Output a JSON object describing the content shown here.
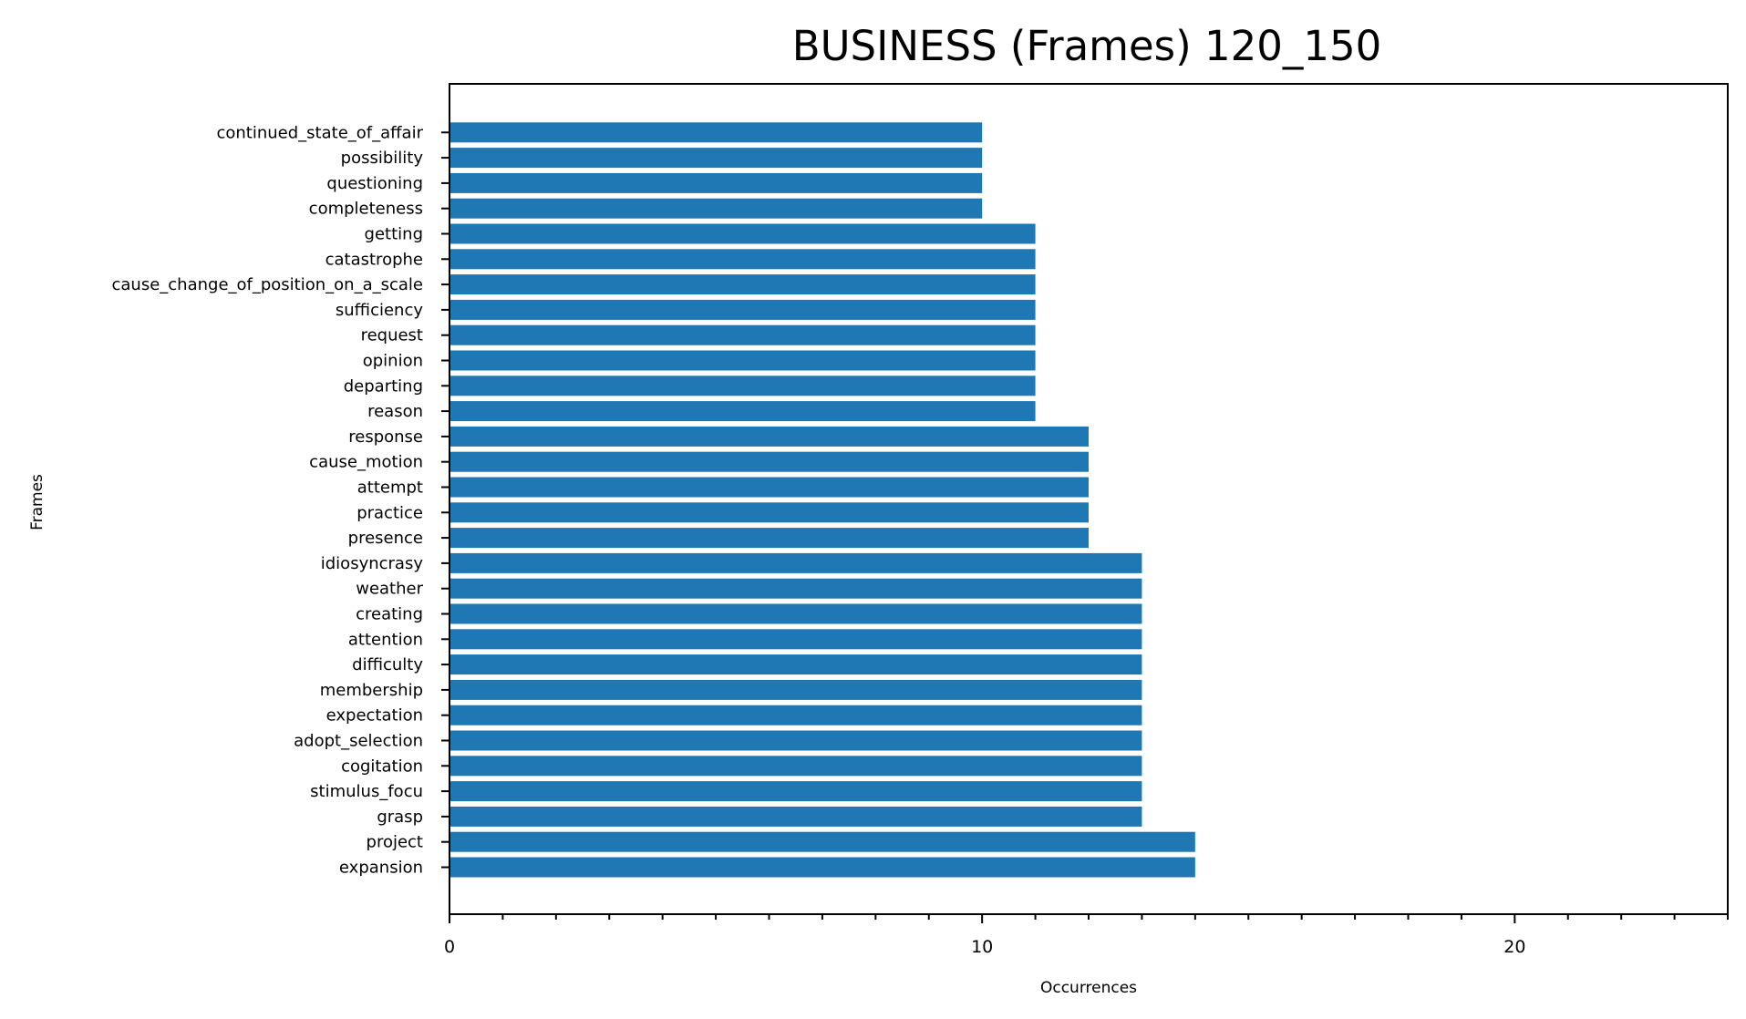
{
  "chart_data": {
    "type": "bar",
    "orientation": "horizontal",
    "title": "BUSINESS (Frames) 120_150",
    "xlabel": "Occurrences",
    "ylabel": "Frames",
    "xlim": [
      0,
      24
    ],
    "x_major_ticks": [
      0,
      10,
      20
    ],
    "x_minor_tick_step": 1,
    "grid": false,
    "bar_color": "#1f77b4",
    "categories": [
      "expansion",
      "project",
      "grasp",
      "stimulus_focu",
      "cogitation",
      "adopt_selection",
      "expectation",
      "membership",
      "difficulty",
      "attention",
      "creating",
      "weather",
      "idiosyncrasy",
      "presence",
      "practice",
      "attempt",
      "cause_motion",
      "response",
      "reason",
      "departing",
      "opinion",
      "request",
      "sufficiency",
      "cause_change_of_position_on_a_scale",
      "catastrophe",
      "getting",
      "completeness",
      "questioning",
      "possibility",
      "continued_state_of_affair"
    ],
    "values": [
      14,
      14,
      13,
      13,
      13,
      13,
      13,
      13,
      13,
      13,
      13,
      13,
      13,
      12,
      12,
      12,
      12,
      12,
      11,
      11,
      11,
      11,
      11,
      11,
      11,
      11,
      10,
      10,
      10,
      10
    ]
  }
}
